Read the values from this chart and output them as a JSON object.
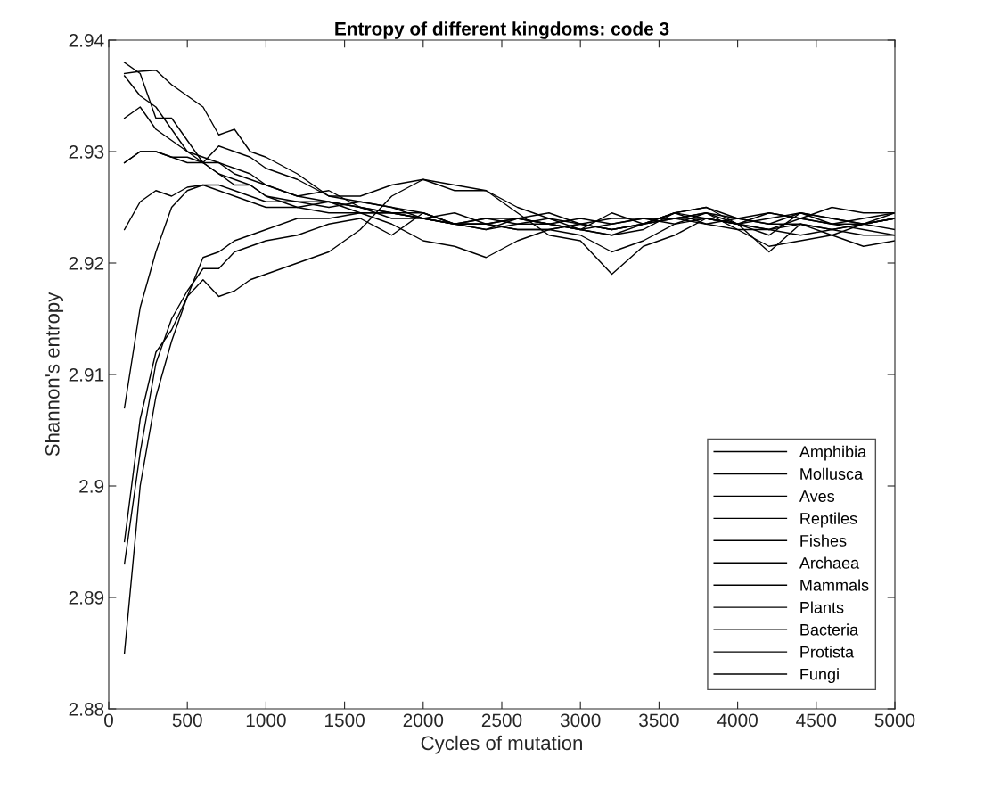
{
  "chart_data": {
    "type": "line",
    "title": "Entropy of different kingdoms: code 3",
    "xlabel": "Cycles of mutation",
    "ylabel": "Shannon's entropy",
    "x": [
      100,
      200,
      300,
      400,
      500,
      600,
      700,
      800,
      900,
      1000,
      1200,
      1400,
      1600,
      1800,
      2000,
      2200,
      2400,
      2600,
      2800,
      3000,
      3200,
      3400,
      3600,
      3800,
      4000,
      4200,
      4400,
      4600,
      4800,
      5000
    ],
    "xlim": [
      0,
      5000
    ],
    "xticks": [
      0,
      500,
      1000,
      1500,
      2000,
      2500,
      3000,
      3500,
      4000,
      4500,
      5000
    ],
    "ylim": [
      2.88,
      2.94
    ],
    "yticks": [
      2.88,
      2.89,
      2.9,
      2.91,
      2.92,
      2.93,
      2.94
    ],
    "grid": false,
    "legend": "bottom right",
    "marker": "none",
    "line_style": "solid",
    "series": [
      {
        "name": "Amphibia",
        "color": "#000000",
        "values": [
          2.938,
          2.937,
          2.933,
          2.933,
          2.931,
          2.929,
          2.928,
          2.927,
          2.927,
          2.926,
          2.9255,
          2.9255,
          2.925,
          2.9245,
          2.924,
          2.9235,
          2.9235,
          2.924,
          2.9235,
          2.923,
          2.9235,
          2.924,
          2.924,
          2.9245,
          2.924,
          2.9235,
          2.9235,
          2.923,
          2.9235,
          2.924
        ]
      },
      {
        "name": "Mollusca",
        "color": "#000000",
        "values": [
          2.937,
          2.9372,
          2.9373,
          2.936,
          2.935,
          2.934,
          2.9315,
          2.932,
          2.93,
          2.9295,
          2.928,
          2.926,
          2.9255,
          2.925,
          2.9245,
          2.9235,
          2.924,
          2.9235,
          2.9235,
          2.923,
          2.9225,
          2.923,
          2.9245,
          2.924,
          2.9235,
          2.9225,
          2.9245,
          2.9235,
          2.923,
          2.9225
        ]
      },
      {
        "name": "Aves",
        "color": "#000000",
        "values": [
          2.9368,
          2.935,
          2.934,
          2.932,
          2.93,
          2.929,
          2.928,
          2.9275,
          2.927,
          2.926,
          2.925,
          2.9255,
          2.925,
          2.924,
          2.924,
          2.9235,
          2.923,
          2.9235,
          2.924,
          2.9235,
          2.923,
          2.9235,
          2.924,
          2.9245,
          2.9235,
          2.923,
          2.9225,
          2.923,
          2.9235,
          2.923
        ]
      },
      {
        "name": "Reptiles",
        "color": "#000000",
        "values": [
          2.933,
          2.934,
          2.932,
          2.931,
          2.93,
          2.9295,
          2.929,
          2.928,
          2.9275,
          2.927,
          2.926,
          2.9265,
          2.925,
          2.9245,
          2.924,
          2.9245,
          2.9235,
          2.924,
          2.9235,
          2.924,
          2.9235,
          2.924,
          2.924,
          2.9235,
          2.924,
          2.9235,
          2.9245,
          2.924,
          2.9235,
          2.9245
        ]
      },
      {
        "name": "Fishes",
        "color": "#000000",
        "values": [
          2.929,
          2.93,
          2.93,
          2.9295,
          2.9295,
          2.929,
          2.929,
          2.9285,
          2.928,
          2.927,
          2.926,
          2.9255,
          2.9245,
          2.9235,
          2.922,
          2.9215,
          2.9205,
          2.922,
          2.923,
          2.9225,
          2.921,
          2.922,
          2.9235,
          2.9245,
          2.923,
          2.9215,
          2.922,
          2.9225,
          2.9235,
          2.924
        ]
      },
      {
        "name": "Archaea",
        "color": "#000000",
        "values": [
          2.929,
          2.93,
          2.93,
          2.9295,
          2.929,
          2.929,
          2.9305,
          2.93,
          2.9295,
          2.9285,
          2.9275,
          2.926,
          2.926,
          2.927,
          2.9275,
          2.927,
          2.9265,
          2.925,
          2.924,
          2.923,
          2.9225,
          2.9235,
          2.9245,
          2.925,
          2.9235,
          2.9245,
          2.924,
          2.925,
          2.9245,
          2.9245
        ]
      },
      {
        "name": "Mammals",
        "color": "#000000",
        "values": [
          2.923,
          2.9255,
          2.9265,
          2.926,
          2.9268,
          2.927,
          2.9265,
          2.926,
          2.9255,
          2.925,
          2.925,
          2.9245,
          2.9245,
          2.9245,
          2.9245,
          2.9235,
          2.9235,
          2.923,
          2.923,
          2.9235,
          2.924,
          2.924,
          2.9235,
          2.924,
          2.9235,
          2.923,
          2.924,
          2.9235,
          2.9235,
          2.924
        ]
      },
      {
        "name": "Plants",
        "color": "#000000",
        "values": [
          2.907,
          2.916,
          2.921,
          2.925,
          2.9265,
          2.927,
          2.927,
          2.9265,
          2.926,
          2.9255,
          2.9255,
          2.925,
          2.9255,
          2.925,
          2.924,
          2.9235,
          2.9235,
          2.923,
          2.923,
          2.9235,
          2.923,
          2.9235,
          2.9245,
          2.925,
          2.924,
          2.9245,
          2.924,
          2.9235,
          2.924,
          2.9245
        ]
      },
      {
        "name": "Bacteria",
        "color": "#000000",
        "values": [
          2.895,
          2.906,
          2.912,
          2.914,
          2.917,
          2.9205,
          2.921,
          2.922,
          2.9225,
          2.923,
          2.924,
          2.924,
          2.9245,
          2.9245,
          2.924,
          2.9235,
          2.924,
          2.924,
          2.9245,
          2.9235,
          2.923,
          2.9235,
          2.924,
          2.924,
          2.9235,
          2.924,
          2.9245,
          2.924,
          2.9235,
          2.924
        ]
      },
      {
        "name": "Protista",
        "color": "#000000",
        "values": [
          2.893,
          2.903,
          2.911,
          2.915,
          2.9175,
          2.9195,
          2.9195,
          2.921,
          2.9215,
          2.922,
          2.9225,
          2.9235,
          2.924,
          2.9225,
          2.9245,
          2.9235,
          2.923,
          2.924,
          2.9235,
          2.923,
          2.9245,
          2.9235,
          2.9245,
          2.9235,
          2.923,
          2.923,
          2.9235,
          2.923,
          2.9225,
          2.9225
        ]
      },
      {
        "name": "Fungi",
        "color": "#000000",
        "values": [
          2.885,
          2.9,
          2.908,
          2.913,
          2.917,
          2.9185,
          2.917,
          2.9175,
          2.9185,
          2.919,
          2.92,
          2.921,
          2.923,
          2.926,
          2.9275,
          2.9265,
          2.9265,
          2.9245,
          2.9225,
          2.922,
          2.919,
          2.9215,
          2.9225,
          2.924,
          2.9235,
          2.921,
          2.9235,
          2.9225,
          2.9215,
          2.922
        ]
      }
    ]
  }
}
